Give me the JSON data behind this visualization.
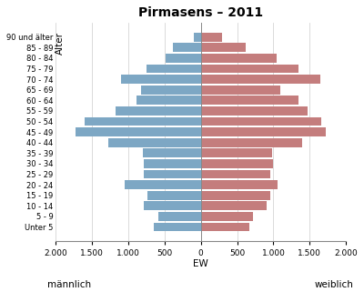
{
  "title": "Pirmasens – 2011",
  "ylabel": "Alter",
  "xlabel_center": "EW",
  "xlabel_left": "männlich",
  "xlabel_right": "weiblich",
  "age_groups": [
    "Unter 5",
    "5 - 9",
    "10 - 14",
    "15 - 19",
    "20 - 24",
    "25 - 29",
    "30 - 34",
    "35 - 39",
    "40 - 44",
    "45 - 49",
    "50 - 54",
    "55 - 59",
    "60 - 64",
    "65 - 69",
    "70 - 74",
    "75 - 79",
    "80 - 84",
    "85 - 89",
    "90 und älter"
  ],
  "male": [
    650,
    580,
    780,
    730,
    1050,
    780,
    780,
    800,
    1280,
    1720,
    1600,
    1180,
    890,
    820,
    1100,
    750,
    490,
    390,
    100
  ],
  "female": [
    670,
    720,
    910,
    960,
    1060,
    960,
    990,
    980,
    1390,
    1720,
    1660,
    1470,
    1350,
    1100,
    1650,
    1340,
    1040,
    620,
    290
  ],
  "male_color": "#7da7c4",
  "female_color": "#c47d7d",
  "background_color": "#ffffff",
  "grid_color": "#cccccc",
  "xlim": 2000,
  "xtick_vals": [
    -2000,
    -1500,
    -1000,
    -500,
    0,
    500,
    1000,
    1500,
    2000
  ],
  "xtick_labels": [
    "2.000",
    "1.500",
    "1.000",
    "500",
    "0",
    "500",
    "1.000",
    "1.500",
    "2.000"
  ]
}
